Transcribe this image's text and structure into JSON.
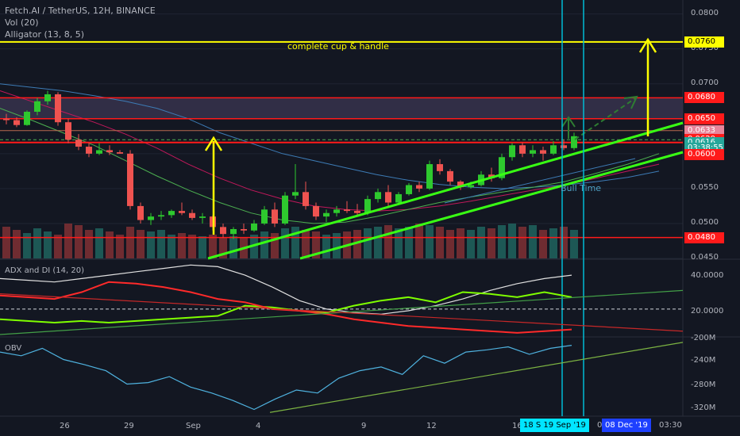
{
  "legend": {
    "symbol_line": "Fetch.AI / TetherUS, 12H, BINANCE",
    "vol_line": "Vol (20)",
    "alligator_line": "Alligator (13, 8, 5)"
  },
  "annotations": {
    "cup_handle": "complete cup & handle",
    "bull_time": "Bull Time"
  },
  "colors": {
    "background": "#131722",
    "up_candle": "#26a69a",
    "down_candle": "#ef5350",
    "yellow": "#ffff00",
    "green_line": "#39ff14",
    "red_line": "#ff1a1a",
    "cyan_line": "#00bcd4",
    "zone_fill": "#3a3550"
  },
  "price_axis": {
    "ticks": [
      "0.0800",
      "0.0750",
      "0.0700",
      "0.0550",
      "0.0500",
      "0.0450"
    ],
    "labels": [
      {
        "text": "0.0760",
        "bg": "#ffff00",
        "fg": "#000000",
        "value": 0.076
      },
      {
        "text": "0.0680",
        "bg": "#ff1a1a",
        "fg": "#ffffff",
        "value": 0.068
      },
      {
        "text": "0.0650",
        "bg": "#ff1a1a",
        "fg": "#ffffff",
        "value": 0.065
      },
      {
        "text": "0.0633",
        "bg": "#e8859a",
        "fg": "#ffffff",
        "value": 0.0633
      },
      {
        "text": "0.0620",
        "bg": "#ff1a1a",
        "fg": "#ffffff",
        "value": 0.062
      },
      {
        "text": "0.0616",
        "bg": "#26a69a",
        "fg": "#ffffff",
        "value": 0.0616
      },
      {
        "text": "03:38:55",
        "bg": "#26a69a",
        "fg": "#ffffff",
        "value": 0.0608
      },
      {
        "text": "0.0600",
        "bg": "#ff1a1a",
        "fg": "#ffffff",
        "value": 0.0599
      },
      {
        "text": "0.0480",
        "bg": "#ff1a1a",
        "fg": "#ffffff",
        "value": 0.048
      }
    ]
  },
  "adx_pane": {
    "title": "ADX and DI (14, 20)",
    "ticks": [
      "40.0000",
      "20.0000",
      "-200M"
    ]
  },
  "obv_pane": {
    "title": "OBV",
    "ticks": [
      "-240M",
      "-280M",
      "-320M"
    ]
  },
  "time_axis": {
    "ticks": [
      "26",
      "29",
      "Sep",
      "4",
      "9",
      "12",
      "16"
    ],
    "badge_left": "18 S  19 Sep '19",
    "badge_gap": "0",
    "badge_right": "08 Dec '19",
    "badge_time": "03:30"
  },
  "chart_data": {
    "type": "candlestick",
    "price_range": [
      0.045,
      0.082
    ],
    "horizontal_levels": [
      0.076,
      0.068,
      0.065,
      0.0633,
      0.062,
      0.0616,
      0.048
    ],
    "resistance_zone": [
      0.065,
      0.068
    ],
    "candles": [
      [
        0.065,
        0.0657,
        0.0642,
        0.0648
      ],
      [
        0.0648,
        0.0652,
        0.0638,
        0.0641
      ],
      [
        0.0641,
        0.0662,
        0.064,
        0.066
      ],
      [
        0.066,
        0.068,
        0.0655,
        0.0675
      ],
      [
        0.0675,
        0.069,
        0.067,
        0.0685
      ],
      [
        0.0685,
        0.0688,
        0.064,
        0.0645
      ],
      [
        0.0645,
        0.065,
        0.0615,
        0.062
      ],
      [
        0.062,
        0.0628,
        0.0605,
        0.061
      ],
      [
        0.061,
        0.0615,
        0.0595,
        0.06
      ],
      [
        0.06,
        0.0615,
        0.0598,
        0.0605
      ],
      [
        0.0605,
        0.0612,
        0.0598,
        0.0602
      ],
      [
        0.0602,
        0.0605,
        0.06,
        0.06
      ],
      [
        0.06,
        0.0605,
        0.052,
        0.0525
      ],
      [
        0.0525,
        0.053,
        0.05,
        0.0505
      ],
      [
        0.0505,
        0.0515,
        0.0498,
        0.051
      ],
      [
        0.051,
        0.0518,
        0.0505,
        0.0512
      ],
      [
        0.0512,
        0.052,
        0.0508,
        0.0518
      ],
      [
        0.0518,
        0.053,
        0.0512,
        0.0515
      ],
      [
        0.0515,
        0.052,
        0.0505,
        0.0508
      ],
      [
        0.0508,
        0.0515,
        0.05,
        0.051
      ],
      [
        0.051,
        0.0512,
        0.049,
        0.0495
      ],
      [
        0.0495,
        0.05,
        0.048,
        0.0485
      ],
      [
        0.0485,
        0.0495,
        0.0478,
        0.0492
      ],
      [
        0.0492,
        0.05,
        0.0485,
        0.049
      ],
      [
        0.049,
        0.0505,
        0.0488,
        0.05
      ],
      [
        0.05,
        0.0525,
        0.0498,
        0.052
      ],
      [
        0.052,
        0.053,
        0.0495,
        0.05
      ],
      [
        0.05,
        0.0545,
        0.0498,
        0.054
      ],
      [
        0.054,
        0.0585,
        0.0535,
        0.0545
      ],
      [
        0.0545,
        0.056,
        0.052,
        0.0525
      ],
      [
        0.0525,
        0.053,
        0.0505,
        0.051
      ],
      [
        0.051,
        0.052,
        0.0502,
        0.0515
      ],
      [
        0.0515,
        0.0525,
        0.051,
        0.052
      ],
      [
        0.052,
        0.0532,
        0.0515,
        0.0518
      ],
      [
        0.0518,
        0.0528,
        0.051,
        0.0515
      ],
      [
        0.0515,
        0.054,
        0.0512,
        0.0535
      ],
      [
        0.0535,
        0.055,
        0.053,
        0.0545
      ],
      [
        0.0545,
        0.0555,
        0.0525,
        0.053
      ],
      [
        0.053,
        0.0545,
        0.0528,
        0.0542
      ],
      [
        0.0542,
        0.0558,
        0.054,
        0.0555
      ],
      [
        0.0555,
        0.056,
        0.0545,
        0.055
      ],
      [
        0.055,
        0.059,
        0.0548,
        0.0585
      ],
      [
        0.0585,
        0.0592,
        0.057,
        0.0575
      ],
      [
        0.0575,
        0.0578,
        0.0555,
        0.056
      ],
      [
        0.056,
        0.0562,
        0.0548,
        0.0552
      ],
      [
        0.0552,
        0.056,
        0.055,
        0.0555
      ],
      [
        0.0555,
        0.0575,
        0.0553,
        0.057
      ],
      [
        0.057,
        0.058,
        0.056,
        0.0565
      ],
      [
        0.0565,
        0.06,
        0.0562,
        0.0595
      ],
      [
        0.0595,
        0.0615,
        0.059,
        0.0612
      ],
      [
        0.0612,
        0.0616,
        0.0595,
        0.06
      ],
      [
        0.06,
        0.0612,
        0.0595,
        0.0605
      ],
      [
        0.0605,
        0.061,
        0.059,
        0.06
      ],
      [
        0.06,
        0.0618,
        0.0598,
        0.0612
      ],
      [
        0.0612,
        0.062,
        0.0605,
        0.0608
      ],
      [
        0.0608,
        0.063,
        0.0605,
        0.0625
      ]
    ],
    "volume": [
      40,
      36,
      32,
      38,
      34,
      30,
      44,
      42,
      36,
      38,
      34,
      30,
      40,
      36,
      34,
      36,
      30,
      32,
      30,
      28,
      30,
      26,
      28,
      26,
      30,
      34,
      32,
      38,
      40,
      36,
      34,
      30,
      32,
      34,
      36,
      38,
      40,
      42,
      38,
      40,
      44,
      42,
      40,
      36,
      38,
      36,
      40,
      38,
      42,
      44,
      40,
      42,
      36,
      38,
      40,
      36
    ],
    "alligator_jaw": [
      0.07,
      0.0695,
      0.069,
      0.0683,
      0.0675,
      0.0665,
      0.065,
      0.063,
      0.0615,
      0.06,
      0.059,
      0.058,
      0.057,
      0.0562,
      0.0556,
      0.0552,
      0.055,
      0.0552,
      0.0555,
      0.056,
      0.0566,
      0.0575
    ],
    "alligator_teeth": [
      0.069,
      0.0675,
      0.066,
      0.0645,
      0.0628,
      0.0608,
      0.0585,
      0.0565,
      0.0548,
      0.0535,
      0.0525,
      0.052,
      0.0518,
      0.052,
      0.0525,
      0.0532,
      0.054,
      0.0548,
      0.0555,
      0.0565,
      0.0575,
      0.0585
    ],
    "alligator_lips": [
      0.0665,
      0.0648,
      0.063,
      0.0612,
      0.059,
      0.0568,
      0.0548,
      0.053,
      0.0515,
      0.0505,
      0.05,
      0.0502,
      0.051,
      0.052,
      0.053,
      0.0538,
      0.0545,
      0.0552,
      0.056,
      0.0572,
      0.0585,
      0.06
    ],
    "adx": [
      38,
      37,
      36,
      38,
      40,
      42,
      44,
      46,
      45,
      40,
      33,
      25,
      20,
      18,
      17,
      19,
      22,
      26,
      31,
      35,
      38,
      40
    ],
    "di_plus": [
      14,
      13,
      12,
      13,
      12,
      13,
      14,
      15,
      16,
      22,
      21,
      19,
      18,
      22,
      25,
      27,
      24,
      30,
      29,
      27,
      30,
      27
    ],
    "di_minus": [
      28,
      27,
      26,
      30,
      36,
      35,
      33,
      30,
      26,
      24,
      20,
      19,
      17,
      14,
      12,
      10,
      9,
      8,
      7,
      6,
      7,
      8
    ],
    "obv": [
      -245,
      -250,
      -240,
      -255,
      -262,
      -270,
      -288,
      -286,
      -278,
      -292,
      -300,
      -310,
      -322,
      -308,
      -296,
      -300,
      -280,
      -270,
      -265,
      -275,
      -250,
      -260,
      -245,
      -242,
      -238,
      -248,
      -240,
      -236
    ]
  }
}
